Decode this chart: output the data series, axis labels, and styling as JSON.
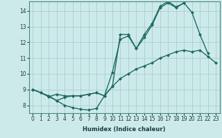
{
  "xlabel": "Humidex (Indice chaleur)",
  "line_color": "#1e6b5e",
  "bg_color": "#cdeaea",
  "grid_color": "#aacece",
  "xlim": [
    -0.5,
    23.5
  ],
  "ylim": [
    7.5,
    14.6
  ],
  "xticks": [
    0,
    1,
    2,
    3,
    4,
    5,
    6,
    7,
    8,
    9,
    10,
    11,
    12,
    13,
    14,
    15,
    16,
    17,
    18,
    19,
    20,
    21,
    22,
    23
  ],
  "yticks": [
    8,
    9,
    10,
    11,
    12,
    13,
    14
  ],
  "line1_x": [
    0,
    1,
    2,
    3,
    4,
    5,
    6,
    7,
    8,
    9,
    10,
    11,
    12,
    13,
    14,
    15,
    16,
    17,
    18,
    19,
    20,
    21,
    22,
    23
  ],
  "line1_y": [
    9.0,
    8.8,
    8.6,
    8.3,
    8.0,
    7.85,
    7.75,
    7.7,
    7.8,
    8.6,
    9.2,
    9.7,
    10.0,
    10.3,
    10.5,
    10.7,
    11.0,
    11.2,
    11.4,
    11.5,
    11.4,
    11.5,
    11.1,
    10.7
  ],
  "line2_x": [
    0,
    1,
    2,
    3,
    4,
    5,
    6,
    7,
    8,
    9,
    10,
    11,
    12,
    13,
    14,
    15,
    16,
    17,
    18,
    19,
    20,
    21,
    22
  ],
  "line2_y": [
    9.0,
    8.8,
    8.55,
    8.7,
    8.6,
    8.6,
    8.6,
    8.7,
    8.8,
    8.6,
    10.1,
    12.2,
    12.4,
    11.6,
    12.3,
    13.1,
    14.2,
    14.5,
    14.2,
    14.5,
    13.9,
    12.5,
    11.3
  ],
  "line3_x": [
    0,
    1,
    2,
    3,
    4,
    5,
    6,
    7,
    8,
    9,
    10,
    11,
    12,
    13,
    14,
    15,
    16,
    17,
    18,
    19
  ],
  "line3_y": [
    9.0,
    8.8,
    8.55,
    8.3,
    8.5,
    8.6,
    8.6,
    8.7,
    8.8,
    8.6,
    9.2,
    12.5,
    12.5,
    11.6,
    12.5,
    13.2,
    14.3,
    14.6,
    14.25,
    14.5
  ],
  "marker_size": 2.5,
  "linewidth": 1.0
}
